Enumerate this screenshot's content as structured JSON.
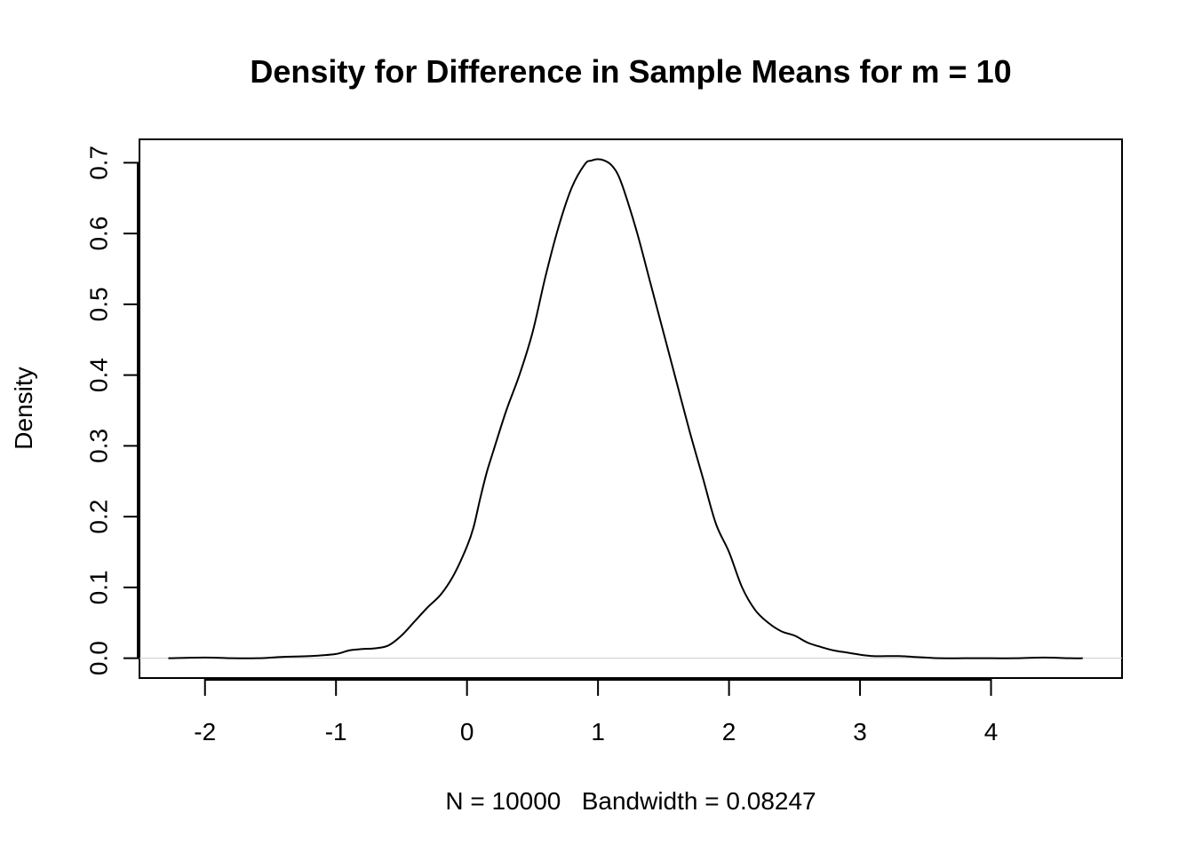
{
  "chart_data": {
    "type": "line",
    "title": "Density for Difference in Sample Means for m = 10",
    "xlabel": "N = 10000   Bandwidth = 0.08247",
    "ylabel": "Density",
    "xlim": [
      -2.5,
      5.0
    ],
    "ylim": [
      -0.028,
      0.733
    ],
    "x_ticks": [
      -2,
      -1,
      0,
      1,
      2,
      3,
      4
    ],
    "x_tick_labels": [
      "-2",
      "-1",
      "0",
      "1",
      "2",
      "3",
      "4"
    ],
    "y_ticks": [
      0.0,
      0.1,
      0.2,
      0.3,
      0.4,
      0.5,
      0.6,
      0.7
    ],
    "y_tick_labels": [
      "0.0",
      "0.1",
      "0.2",
      "0.3",
      "0.4",
      "0.5",
      "0.6",
      "0.7"
    ],
    "grid": false,
    "baseline": 0,
    "baseline_color": "#cccccc",
    "line_color": "#000000",
    "series": [
      {
        "x": [
          -2.28,
          -2.0,
          -1.8,
          -1.6,
          -1.4,
          -1.2,
          -1.0,
          -0.9,
          -0.8,
          -0.7,
          -0.6,
          -0.5,
          -0.4,
          -0.3,
          -0.2,
          -0.1,
          0.0,
          0.05,
          0.1,
          0.15,
          0.2,
          0.3,
          0.4,
          0.5,
          0.6,
          0.7,
          0.8,
          0.9,
          0.95,
          1.0,
          1.05,
          1.1,
          1.15,
          1.2,
          1.3,
          1.4,
          1.5,
          1.6,
          1.7,
          1.8,
          1.9,
          2.0,
          2.1,
          2.2,
          2.3,
          2.4,
          2.5,
          2.6,
          2.7,
          2.8,
          2.9,
          3.0,
          3.1,
          3.2,
          3.3,
          3.4,
          3.5,
          3.6,
          3.8,
          4.0,
          4.2,
          4.4,
          4.6,
          4.7
        ],
        "y": [
          0.0,
          0.001,
          0.0,
          0.0,
          0.002,
          0.003,
          0.006,
          0.011,
          0.013,
          0.014,
          0.018,
          0.032,
          0.052,
          0.072,
          0.09,
          0.118,
          0.158,
          0.185,
          0.225,
          0.262,
          0.292,
          0.35,
          0.4,
          0.46,
          0.54,
          0.61,
          0.665,
          0.698,
          0.703,
          0.705,
          0.703,
          0.697,
          0.684,
          0.66,
          0.6,
          0.53,
          0.46,
          0.39,
          0.32,
          0.255,
          0.19,
          0.15,
          0.1,
          0.068,
          0.05,
          0.038,
          0.032,
          0.022,
          0.016,
          0.011,
          0.008,
          0.005,
          0.003,
          0.003,
          0.003,
          0.002,
          0.001,
          0.0,
          0.0,
          0.0,
          0.0,
          0.001,
          0.0,
          0.0
        ]
      }
    ]
  }
}
